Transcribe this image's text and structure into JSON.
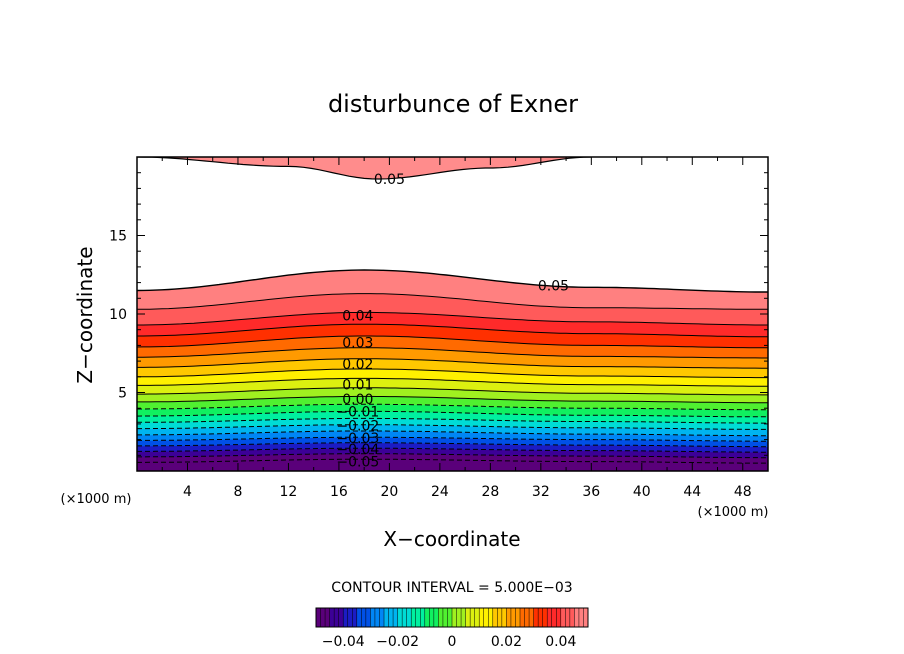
{
  "chart_data": {
    "type": "contour",
    "title": "disturbunce of Exner",
    "xlabel": "X−coordinate",
    "ylabel": "Z−coordinate",
    "x_unit": "(×1000 m)",
    "y_unit": "(×1000 m)",
    "xlim": [
      0,
      50
    ],
    "ylim": [
      0,
      20
    ],
    "x_ticks": [
      4,
      8,
      12,
      16,
      20,
      24,
      28,
      32,
      36,
      40,
      44,
      48
    ],
    "x_tick_labels": [
      "4",
      "8",
      "12",
      "16",
      "20",
      "24",
      "28",
      "32",
      "36",
      "40",
      "44",
      "48"
    ],
    "y_ticks": [
      5,
      10,
      15
    ],
    "y_tick_labels": [
      "5",
      "10",
      "15"
    ],
    "grid": false,
    "contour_interval_text": "CONTOUR INTERVAL = 5.000E−03",
    "contour_interval": 0.005,
    "levels": [
      -0.05,
      -0.045,
      -0.04,
      -0.035,
      -0.03,
      -0.025,
      -0.02,
      -0.015,
      -0.01,
      -0.005,
      0.0,
      0.005,
      0.01,
      0.015,
      0.02,
      0.025,
      0.03,
      0.035,
      0.04,
      0.045,
      0.05
    ],
    "contour_heights_km_at_x": {
      "x": [
        0,
        18,
        36,
        50
      ],
      "levels": [
        {
          "value": -0.05,
          "z": [
            0.55,
            0.75,
            0.6,
            0.5
          ]
        },
        {
          "value": -0.045,
          "z": [
            0.9,
            1.1,
            0.95,
            0.85
          ]
        },
        {
          "value": -0.04,
          "z": [
            1.25,
            1.45,
            1.3,
            1.2
          ]
        },
        {
          "value": -0.035,
          "z": [
            1.6,
            1.8,
            1.65,
            1.55
          ]
        },
        {
          "value": -0.03,
          "z": [
            1.95,
            2.15,
            2.0,
            1.9
          ]
        },
        {
          "value": -0.025,
          "z": [
            2.3,
            2.55,
            2.35,
            2.25
          ]
        },
        {
          "value": -0.02,
          "z": [
            2.7,
            2.95,
            2.75,
            2.65
          ]
        },
        {
          "value": -0.015,
          "z": [
            3.1,
            3.35,
            3.15,
            3.05
          ]
        },
        {
          "value": -0.01,
          "z": [
            3.5,
            3.8,
            3.55,
            3.45
          ]
        },
        {
          "value": -0.005,
          "z": [
            3.95,
            4.25,
            4.0,
            3.9
          ]
        },
        {
          "value": 0.0,
          "z": [
            4.4,
            4.75,
            4.45,
            4.35
          ]
        },
        {
          "value": 0.005,
          "z": [
            4.9,
            5.3,
            4.95,
            4.85
          ]
        },
        {
          "value": 0.01,
          "z": [
            5.45,
            5.9,
            5.5,
            5.4
          ]
        },
        {
          "value": 0.015,
          "z": [
            6.0,
            6.5,
            6.05,
            5.95
          ]
        },
        {
          "value": 0.02,
          "z": [
            6.6,
            7.15,
            6.65,
            6.55
          ]
        },
        {
          "value": 0.025,
          "z": [
            7.25,
            7.85,
            7.3,
            7.2
          ]
        },
        {
          "value": 0.03,
          "z": [
            7.9,
            8.6,
            8.0,
            7.85
          ]
        },
        {
          "value": 0.035,
          "z": [
            8.6,
            9.35,
            8.75,
            8.55
          ]
        },
        {
          "value": 0.04,
          "z": [
            9.3,
            10.1,
            9.5,
            9.3
          ]
        },
        {
          "value": 0.045,
          "z": [
            10.3,
            11.3,
            10.4,
            10.3
          ]
        },
        {
          "value": 0.05,
          "z": [
            11.5,
            12.8,
            11.7,
            11.4
          ]
        }
      ]
    },
    "upper_region": {
      "value": 0.05,
      "boundary_x": [
        0,
        12,
        19,
        28,
        36
      ],
      "boundary_z": [
        20,
        19.4,
        18.6,
        19.3,
        20
      ]
    },
    "contour_labels": [
      {
        "text": "0.05",
        "x": 20,
        "z": 18.6
      },
      {
        "text": "0.05",
        "x": 33,
        "z": 11.8
      },
      {
        "text": "0.04",
        "x": 17.5,
        "z": 9.9
      },
      {
        "text": "0.03",
        "x": 17.5,
        "z": 8.2
      },
      {
        "text": "0.02",
        "x": 17.5,
        "z": 6.8
      },
      {
        "text": "0.01",
        "x": 17.5,
        "z": 5.5
      },
      {
        "text": "0.00",
        "x": 17.5,
        "z": 4.6
      },
      {
        "text": "−0.01",
        "x": 17.5,
        "z": 3.8
      },
      {
        "text": "−0.02",
        "x": 17.5,
        "z": 2.9
      },
      {
        "text": "−0.03",
        "x": 17.5,
        "z": 2.1
      },
      {
        "text": "−0.04",
        "x": 17.5,
        "z": 1.4
      },
      {
        "text": "−0.05",
        "x": 17.5,
        "z": 0.6
      }
    ],
    "colorbar": {
      "range": [
        -0.05,
        0.05
      ],
      "tick_values": [
        -0.04,
        -0.02,
        0,
        0.02,
        0.04
      ],
      "tick_labels": [
        "−0.04",
        "−0.02",
        "0",
        "0.02",
        "0.04"
      ],
      "colors": [
        "#5a007a",
        "#3c0097",
        "#1c1cc4",
        "#0050e6",
        "#0086f5",
        "#00b4f0",
        "#00dcd6",
        "#00f0a0",
        "#10f060",
        "#50f030",
        "#a0f020",
        "#dcf010",
        "#fff000",
        "#ffc800",
        "#ff9a00",
        "#ff6a00",
        "#ff3000",
        "#ff2a2a",
        "#ff5a5a",
        "#ff8080"
      ]
    }
  }
}
